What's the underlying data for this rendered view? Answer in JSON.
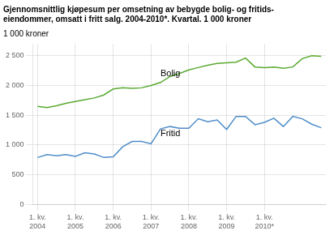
{
  "chart_data": {
    "type": "line",
    "title": [
      "Gjennomsnittlig kjøpesum per omsetning av bebygde bolig- og fritids-",
      "eiendommer, omsatt i fritt salg. 2004-2010*. Kvartal. 1 000 kroner"
    ],
    "ylabel": "1 000 kroner",
    "categories": [
      "1. kv.\n2004",
      null,
      null,
      null,
      "1. kv.\n2005",
      null,
      null,
      null,
      "1. kv.\n2006",
      null,
      null,
      null,
      "1. kv.\n2007",
      null,
      null,
      null,
      "1. kv.\n2008",
      null,
      null,
      null,
      "1. kv.\n2009",
      null,
      null,
      null,
      "1. kv.\n2010*",
      null,
      null,
      null,
      null,
      null,
      null
    ],
    "series": [
      {
        "name": "Bolig",
        "color": "#5aaa32",
        "values": [
          1650,
          1630,
          1660,
          1700,
          1730,
          1760,
          1790,
          1840,
          1940,
          1960,
          1950,
          1960,
          2000,
          2050,
          2150,
          2200,
          2260,
          2300,
          2340,
          2370,
          2380,
          2390,
          2460,
          2310,
          2300,
          2310,
          2290,
          2310,
          2450,
          2500,
          2490
        ]
      },
      {
        "name": "Fritid",
        "color": "#4f8dc9",
        "values": [
          790,
          840,
          820,
          840,
          810,
          870,
          850,
          790,
          800,
          970,
          1060,
          1060,
          1020,
          1270,
          1310,
          1280,
          1280,
          1440,
          1390,
          1420,
          1260,
          1480,
          1480,
          1340,
          1380,
          1450,
          1310,
          1480,
          1440,
          1350,
          1290
        ]
      }
    ],
    "annotations": [
      {
        "text": "Bolig",
        "x": 13,
        "y": 2155
      },
      {
        "text": "Fritid",
        "x": 13,
        "y": 1155
      }
    ],
    "ylim": [
      0,
      2700
    ],
    "yticks": [
      0,
      500,
      {
        "value": 1000,
        "label": "1 000"
      },
      {
        "value": 1500,
        "label": "1 500"
      },
      {
        "value": 2000,
        "label": "2 000"
      },
      {
        "value": 2500,
        "label": "2 500"
      }
    ],
    "grid": true
  }
}
